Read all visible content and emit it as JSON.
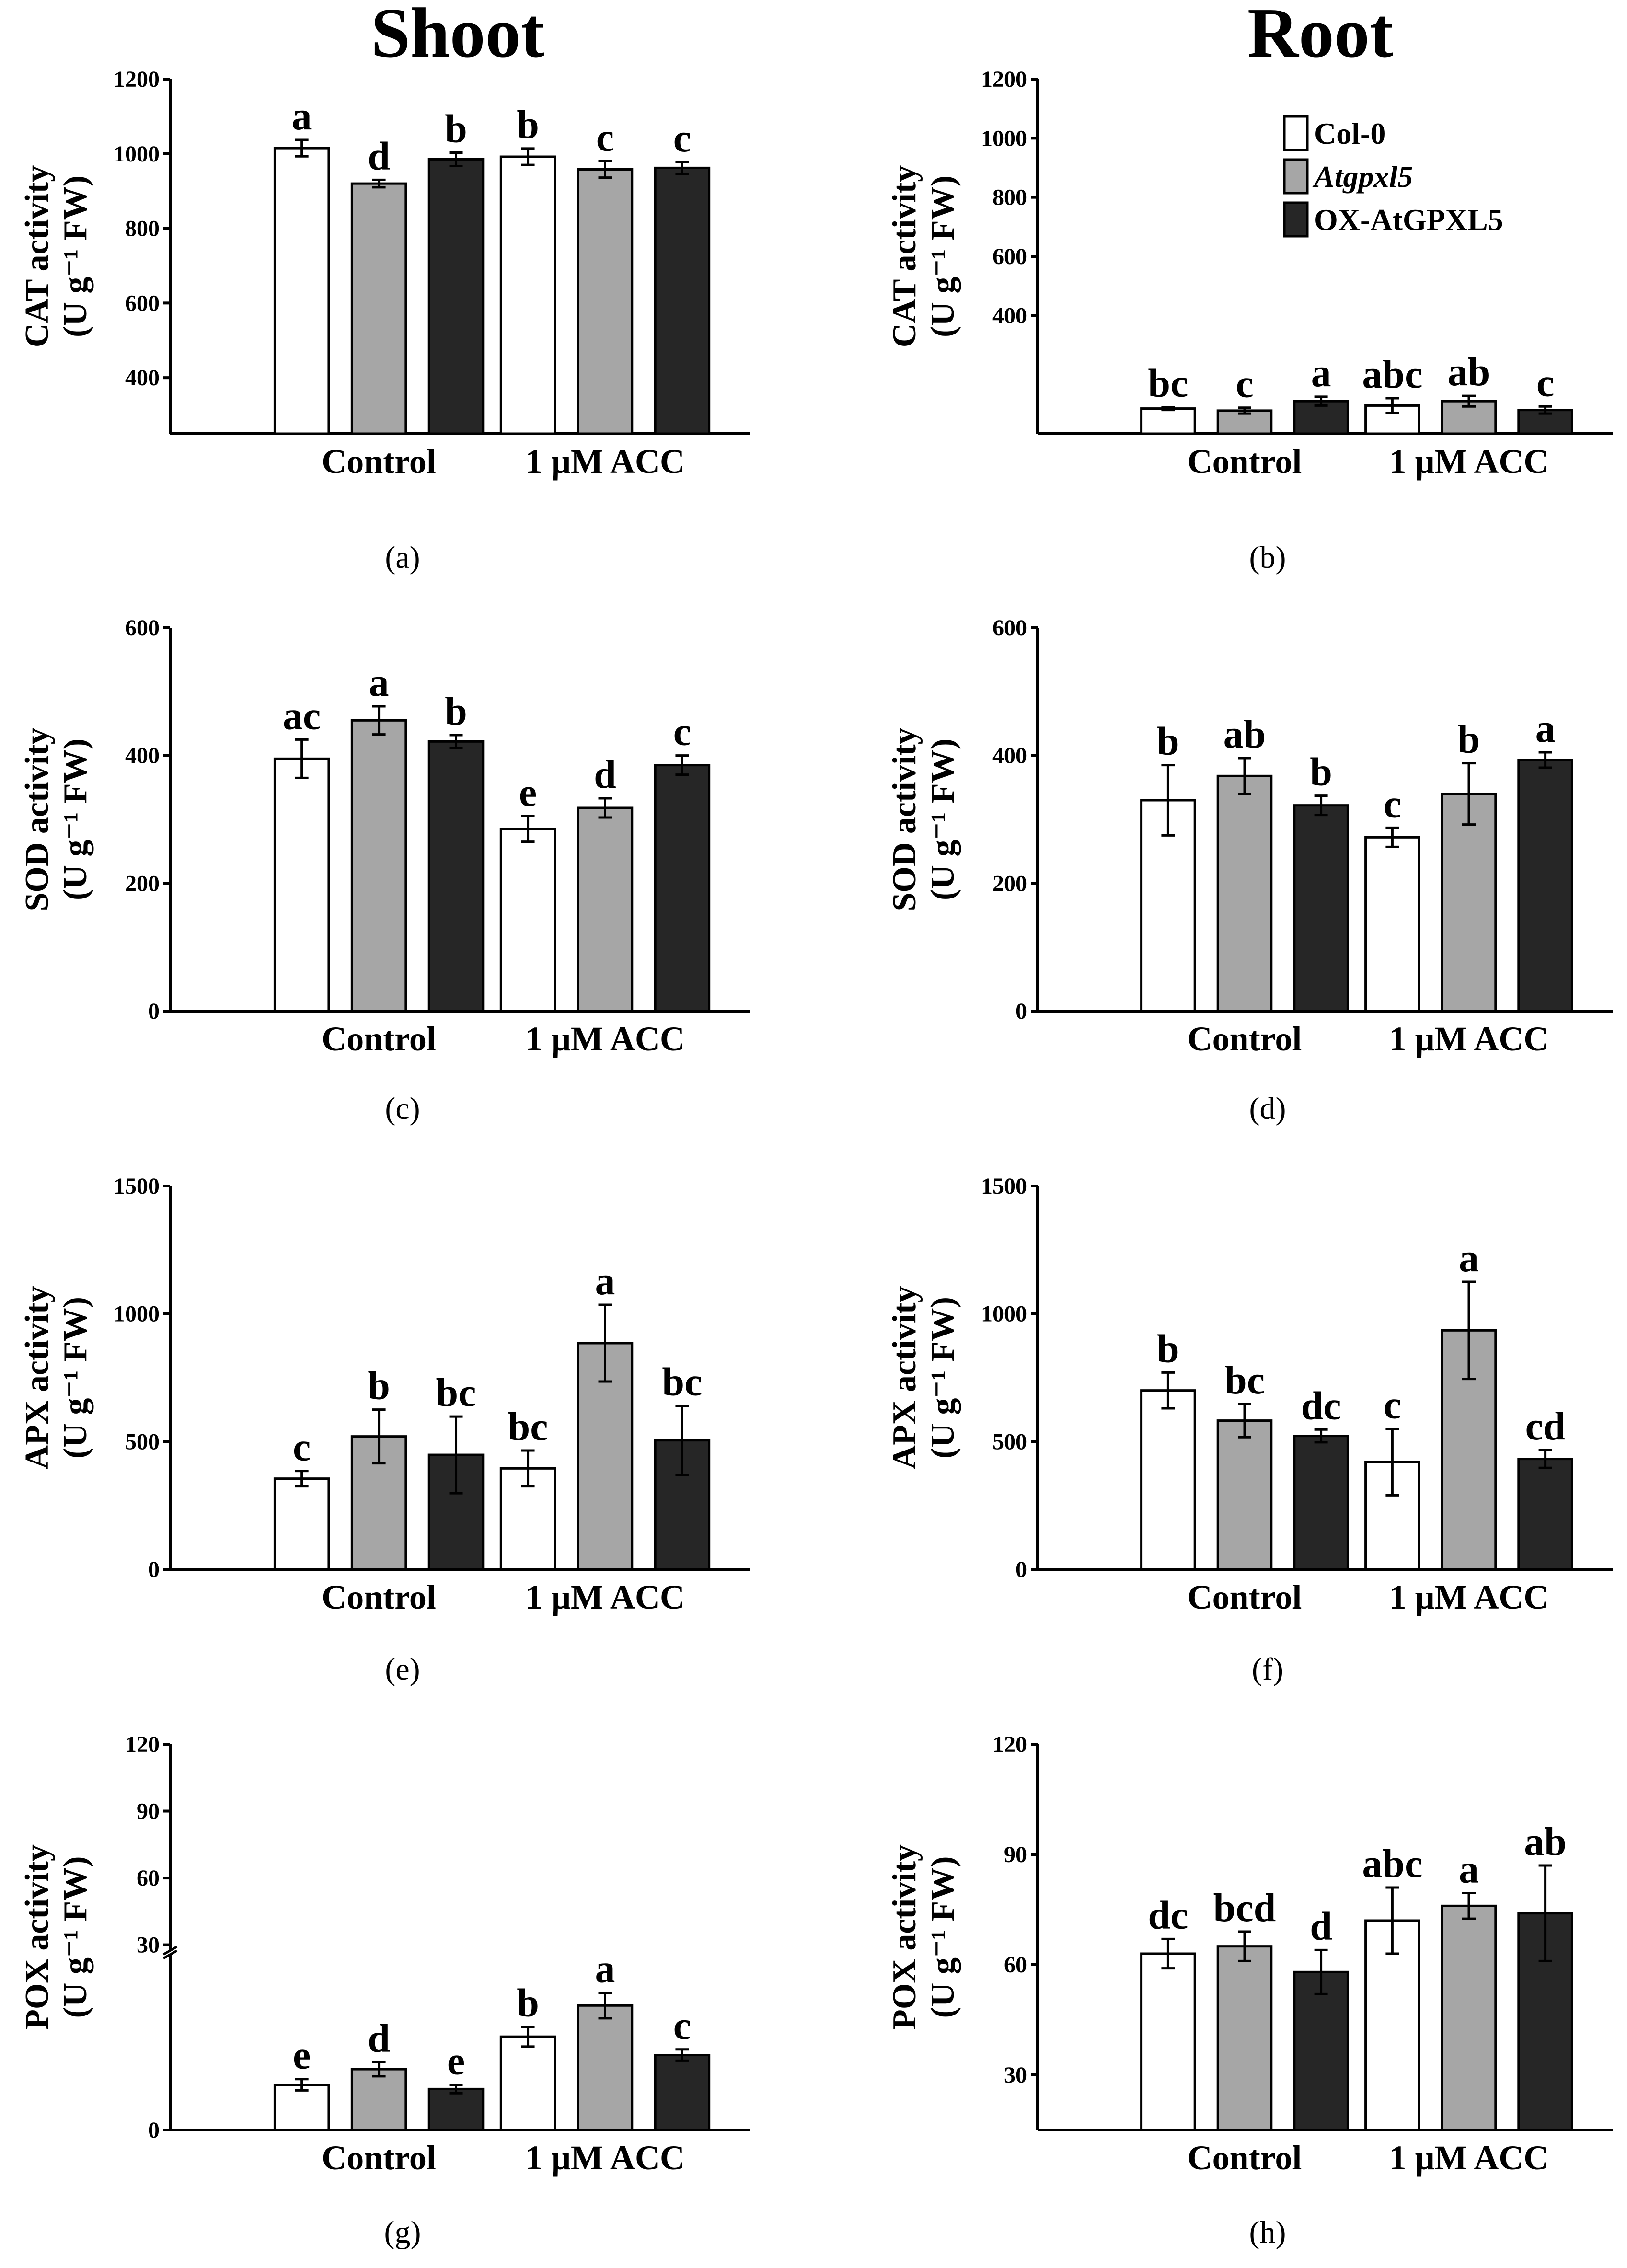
{
  "column_titles": {
    "shoot": "Shoot",
    "root": "Root"
  },
  "legend": [
    {
      "label": "Col-0",
      "italic": false,
      "color": "#ffffff"
    },
    {
      "label": "Atgpxl5",
      "italic": true,
      "color": "#a6a6a6"
    },
    {
      "label": "OX-AtGPXL5",
      "italic": false,
      "color": "#262626"
    }
  ],
  "chart_data": [
    {
      "type": "bar",
      "panel": "(a)",
      "title": "Shoot",
      "ylabel_line1": "CAT activity",
      "ylabel_line2": "(U g⁻¹ FW)",
      "ylim": [
        250,
        1200
      ],
      "yticks": [
        400,
        600,
        800,
        1000,
        1200
      ],
      "axis_break": false,
      "categories": [
        "Control",
        "1 μM ACC"
      ],
      "series": [
        {
          "name": "Col-0",
          "values": [
            1015,
            992
          ],
          "errors": [
            22,
            22
          ],
          "letters": [
            "a",
            "b"
          ]
        },
        {
          "name": "Atgpxl5",
          "values": [
            920,
            958
          ],
          "errors": [
            10,
            22
          ],
          "letters": [
            "d",
            "c"
          ]
        },
        {
          "name": "OX-AtGPXL5",
          "values": [
            985,
            962
          ],
          "errors": [
            18,
            16
          ],
          "letters": [
            "b",
            "c"
          ]
        }
      ]
    },
    {
      "type": "bar",
      "panel": "(b)",
      "title": "Root",
      "ylabel_line1": "CAT activity",
      "ylabel_line2": "(U g⁻¹ FW)",
      "ylim": [
        0,
        1200
      ],
      "yticks": [
        400,
        600,
        800,
        1000,
        1200
      ],
      "axis_break": false,
      "tick_display_range": [
        300,
        1200
      ],
      "categories": [
        "Control",
        "1 μM ACC"
      ],
      "series": [
        {
          "name": "Col-0",
          "values": [
            85,
            95
          ],
          "errors": [
            5,
            25
          ],
          "letters": [
            "bc",
            "abc"
          ]
        },
        {
          "name": "Atgpxl5",
          "values": [
            78,
            110
          ],
          "errors": [
            10,
            18
          ],
          "letters": [
            "c",
            "ab"
          ]
        },
        {
          "name": "OX-AtGPXL5",
          "values": [
            110,
            80
          ],
          "errors": [
            15,
            12
          ],
          "letters": [
            "a",
            "c"
          ]
        }
      ]
    },
    {
      "type": "bar",
      "panel": "(c)",
      "ylabel_line1": "SOD activity",
      "ylabel_line2": "(U g⁻¹ FW)",
      "ylim": [
        0,
        600
      ],
      "yticks": [
        0,
        200,
        400,
        600
      ],
      "axis_break": false,
      "categories": [
        "Control",
        "1 μM ACC"
      ],
      "series": [
        {
          "name": "Col-0",
          "values": [
            395,
            285
          ],
          "errors": [
            30,
            20
          ],
          "letters": [
            "ac",
            "e"
          ]
        },
        {
          "name": "Atgpxl5",
          "values": [
            455,
            318
          ],
          "errors": [
            22,
            15
          ],
          "letters": [
            "a",
            "d"
          ]
        },
        {
          "name": "OX-AtGPXL5",
          "values": [
            422,
            385
          ],
          "errors": [
            10,
            15
          ],
          "letters": [
            "b",
            "c"
          ]
        }
      ]
    },
    {
      "type": "bar",
      "panel": "(d)",
      "ylabel_line1": "SOD activity",
      "ylabel_line2": "(U g⁻¹ FW)",
      "ylim": [
        0,
        600
      ],
      "yticks": [
        0,
        200,
        400,
        600
      ],
      "axis_break": false,
      "categories": [
        "Control",
        "1 μM ACC"
      ],
      "series": [
        {
          "name": "Col-0",
          "values": [
            330,
            272
          ],
          "errors": [
            55,
            15
          ],
          "letters": [
            "b",
            "c"
          ]
        },
        {
          "name": "Atgpxl5",
          "values": [
            368,
            340
          ],
          "errors": [
            28,
            48
          ],
          "letters": [
            "ab",
            "b"
          ]
        },
        {
          "name": "OX-AtGPXL5",
          "values": [
            322,
            393
          ],
          "errors": [
            15,
            12
          ],
          "letters": [
            "b",
            "a"
          ]
        }
      ]
    },
    {
      "type": "bar",
      "panel": "(e)",
      "ylabel_line1": "APX activity",
      "ylabel_line2": "(U g⁻¹ FW)",
      "ylim": [
        0,
        1500
      ],
      "yticks": [
        0,
        500,
        1000,
        1500
      ],
      "axis_break": false,
      "categories": [
        "Control",
        "1 μM ACC"
      ],
      "series": [
        {
          "name": "Col-0",
          "values": [
            355,
            395
          ],
          "errors": [
            30,
            70
          ],
          "letters": [
            "c",
            "bc"
          ]
        },
        {
          "name": "Atgpxl5",
          "values": [
            520,
            885
          ],
          "errors": [
            105,
            150
          ],
          "letters": [
            "b",
            "a"
          ]
        },
        {
          "name": "OX-AtGPXL5",
          "values": [
            448,
            505
          ],
          "errors": [
            150,
            135
          ],
          "letters": [
            "bc",
            "bc"
          ]
        }
      ]
    },
    {
      "type": "bar",
      "panel": "(f)",
      "ylabel_line1": "APX activity",
      "ylabel_line2": "(U g⁻¹ FW)",
      "ylim": [
        0,
        1500
      ],
      "yticks": [
        0,
        500,
        1000,
        1500
      ],
      "axis_break": false,
      "categories": [
        "Control",
        "1 μM ACC"
      ],
      "series": [
        {
          "name": "Col-0",
          "values": [
            700,
            420
          ],
          "errors": [
            70,
            130
          ],
          "letters": [
            "b",
            "c"
          ]
        },
        {
          "name": "Atgpxl5",
          "values": [
            582,
            935
          ],
          "errors": [
            65,
            190
          ],
          "letters": [
            "bc",
            "a"
          ]
        },
        {
          "name": "OX-AtGPXL5",
          "values": [
            522,
            432
          ],
          "errors": [
            25,
            35
          ],
          "letters": [
            "dc",
            "cd"
          ]
        }
      ]
    },
    {
      "type": "bar",
      "panel": "(g)",
      "ylabel_line1": "POX activity",
      "ylabel_line2": "(U g⁻¹ FW)",
      "ylim": [
        0,
        120
      ],
      "yticks": [
        30,
        60,
        90,
        120
      ],
      "axis_break": true,
      "categories": [
        "Control",
        "1 μM ACC"
      ],
      "series": [
        {
          "name": "Col-0",
          "values": [
            1.6,
            3.3
          ],
          "errors": [
            0.2,
            0.35
          ],
          "letters": [
            "e",
            "b"
          ]
        },
        {
          "name": "Atgpxl5",
          "values": [
            2.15,
            4.4
          ],
          "errors": [
            0.25,
            0.45
          ],
          "letters": [
            "d",
            "a"
          ]
        },
        {
          "name": "OX-AtGPXL5",
          "values": [
            1.45,
            2.65
          ],
          "errors": [
            0.15,
            0.2
          ],
          "letters": [
            "e",
            "c"
          ]
        }
      ]
    },
    {
      "type": "bar",
      "panel": "(h)",
      "ylabel_line1": "POX activity",
      "ylabel_line2": "(U g⁻¹ FW)",
      "ylim": [
        15,
        120
      ],
      "yticks": [
        30,
        60,
        90,
        120
      ],
      "axis_break": false,
      "categories": [
        "Control",
        "1 μM ACC"
      ],
      "series": [
        {
          "name": "Col-0",
          "values": [
            63,
            72
          ],
          "errors": [
            4,
            9
          ],
          "letters": [
            "dc",
            "abc"
          ]
        },
        {
          "name": "Atgpxl5",
          "values": [
            65,
            76
          ],
          "errors": [
            4,
            3.5
          ],
          "letters": [
            "bcd",
            "a"
          ]
        },
        {
          "name": "OX-AtGPXL5",
          "values": [
            58,
            74
          ],
          "errors": [
            6,
            13
          ],
          "letters": [
            "d",
            "ab"
          ]
        }
      ]
    }
  ]
}
